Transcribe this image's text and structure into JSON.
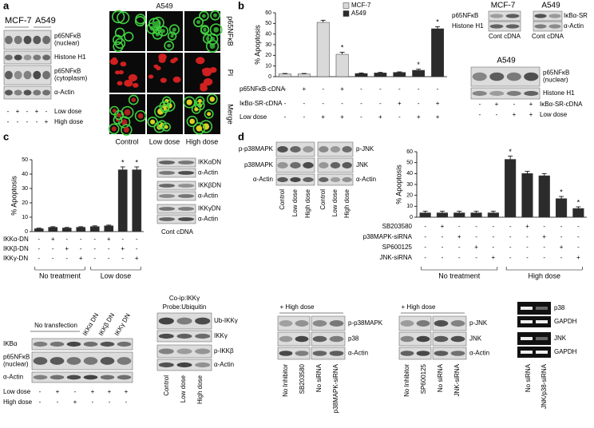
{
  "panel_labels": [
    "a",
    "b",
    "c",
    "d"
  ],
  "panel_a": {
    "cell_lines": [
      "MCF-7",
      "A549"
    ],
    "blot_rows": [
      [
        "p65NFκB",
        "(nuclear)"
      ],
      "Histone H1",
      [
        "p65NFκB",
        "(cytoplasm)"
      ],
      "α-Actin"
    ],
    "treatments": [
      {
        "name": "Low dose",
        "signs": [
          "-",
          "+",
          "-",
          "+",
          "-"
        ]
      },
      {
        "name": "High dose",
        "signs": [
          "-",
          "-",
          "-",
          "-",
          "+"
        ]
      }
    ],
    "image_title": "A549",
    "image_rows": [
      "p65NFκB",
      "PI",
      "Merge"
    ],
    "image_columns": [
      "Control",
      "Low dose",
      "High dose"
    ]
  },
  "panel_b": {
    "treatments": [
      {
        "name": "p65NFκB-cDNA",
        "signs": [
          "-",
          "+",
          "-",
          "+",
          "-",
          "-",
          "-",
          "-",
          "-"
        ]
      },
      {
        "name": "IκBα-SR-cDNA",
        "signs": [
          "-",
          "-",
          "-",
          "-",
          "-",
          "-",
          "+",
          "-",
          "+"
        ]
      },
      {
        "name": "Low dose",
        "signs": [
          "-",
          "-",
          "+",
          "+",
          "-",
          "+",
          "-",
          "+",
          "+"
        ]
      }
    ],
    "blot_top": {
      "cell_lines": [
        "MCF-7",
        "A549"
      ],
      "rows_left": [
        "p65NFκB",
        "Histone H1"
      ],
      "rows_right": [
        "IκBα-SR",
        "α-Actin"
      ],
      "columns": [
        "Cont cDNA",
        "Cont cDNA"
      ]
    },
    "blot_bottom": {
      "title": "A549",
      "rows": [
        [
          "p65NFκB",
          "(nuclear)"
        ],
        "Histone H1"
      ],
      "treatments": [
        {
          "name": "IκBα-SR-cDNA",
          "signs": [
            "-",
            "+",
            "-",
            "+"
          ]
        },
        {
          "name": "Low dose",
          "signs": [
            "-",
            "-",
            "+",
            "+"
          ]
        }
      ]
    }
  },
  "panel_c": {
    "treatments": [
      {
        "name": "IKKα-DN",
        "signs": [
          "-",
          "+",
          "-",
          "-",
          "-",
          "+",
          "-",
          "-"
        ]
      },
      {
        "name": "IKKβ-DN",
        "signs": [
          "-",
          "-",
          "+",
          "-",
          "-",
          "-",
          "+",
          "-"
        ]
      },
      {
        "name": "IKKγ-DN",
        "signs": [
          "-",
          "-",
          "-",
          "+",
          "-",
          "-",
          "-",
          "+"
        ]
      }
    ],
    "blot_rows": [
      "IKKαDN",
      "α-Actin",
      "IKKβDN",
      "α-Actin",
      "IKKγDN",
      "α-Actin"
    ],
    "blot_columns": "Cont cDNA"
  },
  "panel_d": {
    "blot_left_rows": [
      "p-p38MAPK",
      "p38MAPK",
      "α-Actin"
    ],
    "blot_right_rows": [
      "p-JNK",
      "JNK",
      "α-Actin"
    ],
    "blot_columns": [
      "Control",
      "Low dose",
      "High dose"
    ],
    "treatments": [
      {
        "name": "SB203580",
        "signs": [
          "-",
          "+",
          "-",
          "-",
          "-",
          "-",
          "+",
          "-",
          "-",
          "-"
        ]
      },
      {
        "name": "p38MAPK-siRNA",
        "signs": [
          "-",
          "-",
          "+",
          "-",
          "-",
          "-",
          "-",
          "+",
          "-",
          "-"
        ]
      },
      {
        "name": "SP600125",
        "signs": [
          "-",
          "-",
          "-",
          "+",
          "-",
          "-",
          "-",
          "-",
          "+",
          "-"
        ]
      },
      {
        "name": "JNK-siRNA",
        "signs": [
          "-",
          "-",
          "-",
          "-",
          "+",
          "-",
          "-",
          "-",
          "-",
          "+"
        ]
      }
    ]
  },
  "panel_bottom": {
    "transfection": {
      "group": "No transfection",
      "columns": [
        "IKKα DN",
        "IKKβ DN",
        "IKKγ DN"
      ],
      "rows": [
        "IKBα",
        [
          "p65NFκB",
          "(nuclear)"
        ],
        "α-Actin"
      ],
      "treatments": [
        {
          "name": "Low dose",
          "signs": [
            "-",
            "+",
            "-",
            "+",
            "+",
            "+"
          ]
        },
        {
          "name": "High dose",
          "signs": [
            "-",
            "-",
            "+",
            "-",
            "-",
            "-"
          ]
        }
      ]
    },
    "coip": {
      "title": [
        "Co-ip:IKKγ",
        "Probe:Ubiquitin"
      ],
      "rows": [
        "Ub-IKKγ",
        "IKKγ",
        "p-IKKβ",
        "α-Actin"
      ],
      "columns": [
        "Control",
        "Low dose",
        "High dose"
      ]
    },
    "p38_blot": {
      "title": "+ High dose",
      "rows": [
        "p-p38MAPK",
        "p38",
        "α-Actin"
      ],
      "columns": [
        "No Inhibitor",
        "SB203580",
        "No siRNA",
        "p38MAPK-siRNA"
      ]
    },
    "jnk_blot": {
      "title": "+ High dose",
      "rows": [
        "p-JNK",
        "JNK",
        "α-Actin"
      ],
      "columns": [
        "No Inhibitor",
        "SP600125",
        "No siRNA",
        "JNK-siRNA"
      ]
    },
    "rt_pcr": {
      "rows": [
        "p38",
        "GAPDH",
        "JNK",
        "GAPDH"
      ],
      "columns": [
        "No siRNA",
        "JNK/p38-siRNA"
      ]
    }
  },
  "chart_data": [
    {
      "type": "bar",
      "y_label": "% Apoptosis",
      "ylim": [
        0,
        60
      ],
      "yticks": [
        0,
        10,
        20,
        30,
        40,
        50,
        60
      ],
      "series": [
        {
          "name": "MCF-7",
          "color": "#d9d9d9",
          "values": [
            2.5,
            2.5,
            51,
            21,
            null,
            null,
            null,
            null,
            null
          ],
          "errors": [
            0.5,
            0.5,
            2,
            2,
            null,
            null,
            null,
            null,
            null
          ]
        },
        {
          "name": "A549",
          "color": "#2b2b2b",
          "values": [
            null,
            null,
            null,
            null,
            3,
            3.5,
            4,
            6,
            45
          ],
          "errors": [
            null,
            null,
            null,
            null,
            0.5,
            0.5,
            0.5,
            1,
            2
          ]
        }
      ],
      "significance": [
        null,
        null,
        null,
        "*",
        null,
        null,
        null,
        "*",
        "*"
      ]
    },
    {
      "type": "bar",
      "y_label": "% Apoptosis",
      "ylim": [
        0,
        50
      ],
      "yticks": [
        0,
        10,
        20,
        30,
        40,
        50
      ],
      "series": [
        {
          "name": "A549",
          "color": "#2b2b2b",
          "values": [
            2,
            3,
            2.5,
            3,
            3.5,
            4,
            43,
            43
          ],
          "errors": [
            0.4,
            0.4,
            0.4,
            0.4,
            0.5,
            0.5,
            2,
            2
          ]
        }
      ],
      "significance": [
        null,
        null,
        null,
        null,
        null,
        null,
        "*",
        "*"
      ],
      "groups": [
        "No treatment",
        "Low dose"
      ]
    },
    {
      "type": "bar",
      "y_label": "% Apoptosis",
      "ylim": [
        0,
        60
      ],
      "yticks": [
        0,
        10,
        20,
        30,
        40,
        50,
        60
      ],
      "series": [
        {
          "name": "A549",
          "color": "#2b2b2b",
          "values": [
            4,
            4,
            4,
            4,
            4,
            53,
            40,
            38,
            17,
            8
          ],
          "errors": [
            1.5,
            1.5,
            1.5,
            1.5,
            1.5,
            3,
            2,
            2,
            2,
            1.5
          ]
        }
      ],
      "significance": [
        null,
        null,
        null,
        null,
        null,
        "*",
        null,
        null,
        "*",
        "*"
      ],
      "groups": [
        "No treatment",
        "High dose"
      ]
    }
  ]
}
